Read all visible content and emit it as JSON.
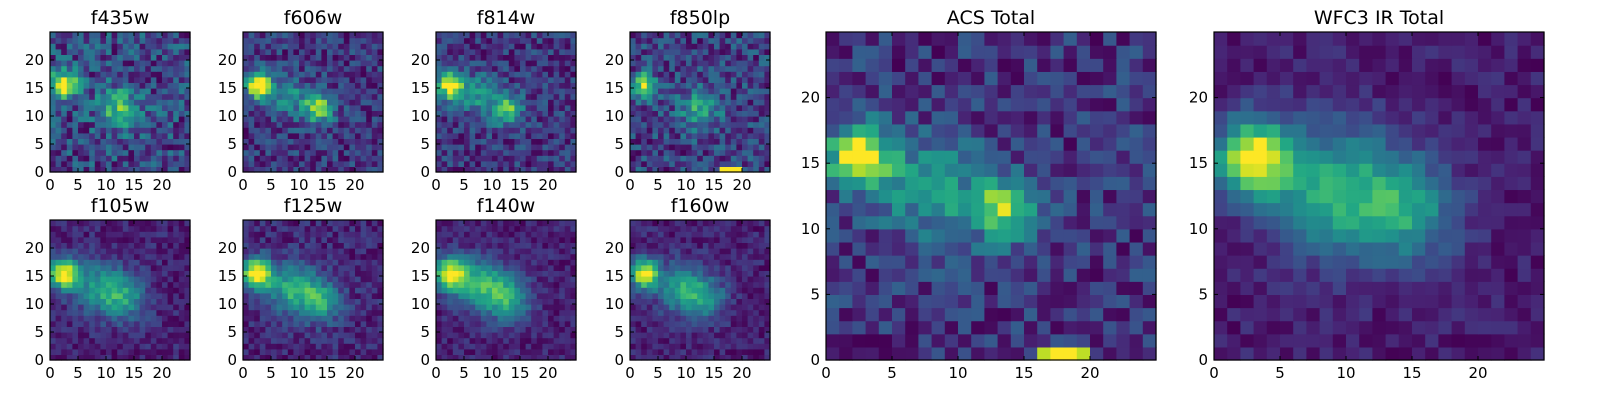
{
  "chart_data": [
    {
      "type": "heatmap",
      "title": "f435w",
      "xlabel": "",
      "ylabel": "",
      "xlim": [
        0,
        25
      ],
      "ylim": [
        0,
        25
      ],
      "xticks": [
        0,
        5,
        10,
        15,
        20
      ],
      "yticks": [
        0,
        5,
        10,
        15,
        20
      ],
      "colormap": "viridis",
      "seed": 11,
      "noise": 0.55,
      "blobs": [
        {
          "x": 2.5,
          "y": 15.5,
          "sigma": 1.8,
          "amp": 1.0
        },
        {
          "x": 12.5,
          "y": 11.5,
          "sigma": 2.6,
          "amp": 0.6
        }
      ],
      "features": []
    },
    {
      "type": "heatmap",
      "title": "f606w",
      "xlabel": "",
      "ylabel": "",
      "xlim": [
        0,
        25
      ],
      "ylim": [
        0,
        25
      ],
      "xticks": [
        0,
        5,
        10,
        15,
        20
      ],
      "yticks": [
        0,
        5,
        10,
        15,
        20
      ],
      "colormap": "viridis",
      "seed": 23,
      "noise": 0.35,
      "blobs": [
        {
          "x": 2.8,
          "y": 15.5,
          "sigma": 1.6,
          "amp": 1.0
        },
        {
          "x": 13.5,
          "y": 11.5,
          "sigma": 1.8,
          "amp": 0.75
        },
        {
          "x": 8.0,
          "y": 13.5,
          "sigma": 2.5,
          "amp": 0.35
        }
      ],
      "features": []
    },
    {
      "type": "heatmap",
      "title": "f814w",
      "xlabel": "",
      "ylabel": "",
      "xlim": [
        0,
        25
      ],
      "ylim": [
        0,
        25
      ],
      "xticks": [
        0,
        5,
        10,
        15,
        20
      ],
      "yticks": [
        0,
        5,
        10,
        15,
        20
      ],
      "colormap": "viridis",
      "seed": 37,
      "noise": 0.4,
      "blobs": [
        {
          "x": 2.5,
          "y": 15.5,
          "sigma": 1.7,
          "amp": 1.0
        },
        {
          "x": 12.8,
          "y": 11.2,
          "sigma": 1.9,
          "amp": 0.7
        },
        {
          "x": 7.5,
          "y": 13.8,
          "sigma": 2.6,
          "amp": 0.4
        }
      ],
      "features": []
    },
    {
      "type": "heatmap",
      "title": "f850lp",
      "xlabel": "",
      "ylabel": "",
      "xlim": [
        0,
        25
      ],
      "ylim": [
        0,
        25
      ],
      "xticks": [
        0,
        5,
        10,
        15,
        20
      ],
      "yticks": [
        0,
        5,
        10,
        15,
        20
      ],
      "colormap": "viridis",
      "seed": 41,
      "noise": 0.45,
      "blobs": [
        {
          "x": 2.5,
          "y": 15.5,
          "sigma": 1.5,
          "amp": 0.85
        },
        {
          "x": 12.5,
          "y": 11.5,
          "sigma": 2.6,
          "amp": 0.45
        }
      ],
      "features": [
        {
          "x0": 16,
          "x1": 20,
          "y0": 0,
          "y1": 1,
          "value": 1.0
        }
      ]
    },
    {
      "type": "heatmap",
      "title": "f105w",
      "xlabel": "",
      "ylabel": "",
      "xlim": [
        0,
        25
      ],
      "ylim": [
        0,
        25
      ],
      "xticks": [
        0,
        5,
        10,
        15,
        20
      ],
      "yticks": [
        0,
        5,
        10,
        15,
        20
      ],
      "colormap": "viridis",
      "seed": 53,
      "noise": 0.22,
      "blobs": [
        {
          "x": 2.5,
          "y": 15.5,
          "sigma": 1.9,
          "amp": 1.0
        },
        {
          "x": 9,
          "y": 13,
          "sigma": 3.2,
          "amp": 0.45
        },
        {
          "x": 13.5,
          "y": 11,
          "sigma": 2.8,
          "amp": 0.4
        }
      ],
      "features": []
    },
    {
      "type": "heatmap",
      "title": "f125w",
      "xlabel": "",
      "ylabel": "",
      "xlim": [
        0,
        25
      ],
      "ylim": [
        0,
        25
      ],
      "xticks": [
        0,
        5,
        10,
        15,
        20
      ],
      "yticks": [
        0,
        5,
        10,
        15,
        20
      ],
      "colormap": "viridis",
      "seed": 67,
      "noise": 0.22,
      "blobs": [
        {
          "x": 2.5,
          "y": 15.5,
          "sigma": 1.9,
          "amp": 1.0
        },
        {
          "x": 9,
          "y": 13,
          "sigma": 3.0,
          "amp": 0.5
        },
        {
          "x": 14,
          "y": 10.5,
          "sigma": 2.6,
          "amp": 0.45
        }
      ],
      "features": []
    },
    {
      "type": "heatmap",
      "title": "f140w",
      "xlabel": "",
      "ylabel": "",
      "xlim": [
        0,
        25
      ],
      "ylim": [
        0,
        25
      ],
      "xticks": [
        0,
        5,
        10,
        15,
        20
      ],
      "yticks": [
        0,
        5,
        10,
        15,
        20
      ],
      "colormap": "viridis",
      "seed": 71,
      "noise": 0.22,
      "blobs": [
        {
          "x": 2.5,
          "y": 15.5,
          "sigma": 2.1,
          "amp": 1.0
        },
        {
          "x": 8,
          "y": 13.5,
          "sigma": 3.2,
          "amp": 0.6
        },
        {
          "x": 13,
          "y": 11,
          "sigma": 2.8,
          "amp": 0.55
        }
      ],
      "features": []
    },
    {
      "type": "heatmap",
      "title": "f160w",
      "xlabel": "",
      "ylabel": "",
      "xlim": [
        0,
        25
      ],
      "ylim": [
        0,
        25
      ],
      "xticks": [
        0,
        5,
        10,
        15,
        20
      ],
      "yticks": [
        0,
        5,
        10,
        15,
        20
      ],
      "colormap": "viridis",
      "seed": 83,
      "noise": 0.22,
      "blobs": [
        {
          "x": 2.5,
          "y": 15.5,
          "sigma": 1.8,
          "amp": 1.0
        },
        {
          "x": 9,
          "y": 13,
          "sigma": 3.0,
          "amp": 0.5
        },
        {
          "x": 13.5,
          "y": 11,
          "sigma": 2.6,
          "amp": 0.45
        }
      ],
      "features": []
    },
    {
      "type": "heatmap",
      "title": "ACS Total",
      "xlabel": "",
      "ylabel": "",
      "xlim": [
        0,
        25
      ],
      "ylim": [
        0,
        25
      ],
      "xticks": [
        0,
        5,
        10,
        15,
        20
      ],
      "yticks": [
        0,
        5,
        10,
        15,
        20
      ],
      "colormap": "viridis",
      "seed": 97,
      "noise": 0.32,
      "blobs": [
        {
          "x": 2.5,
          "y": 15.5,
          "sigma": 1.6,
          "amp": 1.0
        },
        {
          "x": 13.5,
          "y": 11.5,
          "sigma": 1.6,
          "amp": 0.7
        },
        {
          "x": 8,
          "y": 13,
          "sigma": 2.8,
          "amp": 0.4
        }
      ],
      "features": [
        {
          "x0": 16,
          "x1": 20,
          "y0": 0,
          "y1": 1,
          "value": 0.9
        },
        {
          "x0": 17,
          "x1": 19,
          "y0": 0,
          "y1": 1,
          "value": 1.0
        }
      ]
    },
    {
      "type": "heatmap",
      "title": "WFC3 IR Total",
      "xlabel": "",
      "ylabel": "",
      "xlim": [
        0,
        25
      ],
      "ylim": [
        0,
        25
      ],
      "xticks": [
        0,
        5,
        10,
        15,
        20
      ],
      "yticks": [
        0,
        5,
        10,
        15,
        20
      ],
      "colormap": "viridis",
      "seed": 101,
      "noise": 0.18,
      "blobs": [
        {
          "x": 3.0,
          "y": 15.5,
          "sigma": 2.0,
          "amp": 1.0
        },
        {
          "x": 9,
          "y": 13,
          "sigma": 3.4,
          "amp": 0.55
        },
        {
          "x": 14.5,
          "y": 11.5,
          "sigma": 2.8,
          "amp": 0.5
        }
      ],
      "features": []
    }
  ]
}
